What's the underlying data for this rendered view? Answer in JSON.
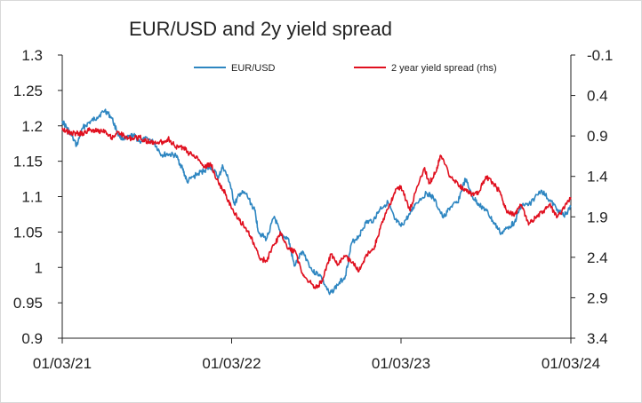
{
  "chart_data": {
    "type": "line",
    "title": "EUR/USD and 2y yield spread",
    "xlabel": "",
    "ylabel": "",
    "x_ticks": [
      "01/03/21",
      "01/03/22",
      "01/03/23",
      "01/03/24"
    ],
    "y_left": {
      "range": [
        0.9,
        1.3
      ],
      "ticks": [
        "1.3",
        "1.25",
        "1.2",
        "1.15",
        "1.1",
        "1.05",
        "1",
        "0.95",
        "0.9"
      ]
    },
    "y_right": {
      "range": [
        -0.1,
        3.4
      ],
      "inverted": true,
      "ticks": [
        "-0.1",
        "0.4",
        "0.9",
        "1.4",
        "1.9",
        "2.4",
        "2.9",
        "3.4"
      ]
    },
    "legend_position": "top",
    "series": [
      {
        "name": "EUR/USD",
        "axis": "left",
        "color": "#2e86c1",
        "points": [
          [
            "2021-03-01",
            1.207
          ],
          [
            "2021-03-15",
            1.193
          ],
          [
            "2021-04-01",
            1.172
          ],
          [
            "2021-04-15",
            1.198
          ],
          [
            "2021-05-01",
            1.206
          ],
          [
            "2021-05-15",
            1.212
          ],
          [
            "2021-06-01",
            1.222
          ],
          [
            "2021-06-15",
            1.212
          ],
          [
            "2021-07-01",
            1.186
          ],
          [
            "2021-07-15",
            1.181
          ],
          [
            "2021-08-01",
            1.187
          ],
          [
            "2021-08-15",
            1.178
          ],
          [
            "2021-09-01",
            1.182
          ],
          [
            "2021-09-15",
            1.176
          ],
          [
            "2021-10-01",
            1.159
          ],
          [
            "2021-10-15",
            1.16
          ],
          [
            "2021-11-01",
            1.158
          ],
          [
            "2021-11-15",
            1.14
          ],
          [
            "2021-11-25",
            1.121
          ],
          [
            "2021-12-15",
            1.131
          ],
          [
            "2022-01-01",
            1.137
          ],
          [
            "2022-01-15",
            1.142
          ],
          [
            "2022-02-01",
            1.127
          ],
          [
            "2022-02-10",
            1.143
          ],
          [
            "2022-02-25",
            1.12
          ],
          [
            "2022-03-07",
            1.089
          ],
          [
            "2022-03-20",
            1.105
          ],
          [
            "2022-04-01",
            1.104
          ],
          [
            "2022-04-20",
            1.08
          ],
          [
            "2022-04-28",
            1.05
          ],
          [
            "2022-05-15",
            1.04
          ],
          [
            "2022-06-01",
            1.072
          ],
          [
            "2022-06-15",
            1.045
          ],
          [
            "2022-07-01",
            1.041
          ],
          [
            "2022-07-14",
            1.002
          ],
          [
            "2022-08-01",
            1.023
          ],
          [
            "2022-08-23",
            0.994
          ],
          [
            "2022-09-07",
            0.99
          ],
          [
            "2022-09-28",
            0.962
          ],
          [
            "2022-10-15",
            0.975
          ],
          [
            "2022-11-01",
            0.988
          ],
          [
            "2022-11-15",
            1.035
          ],
          [
            "2022-12-01",
            1.045
          ],
          [
            "2022-12-15",
            1.063
          ],
          [
            "2023-01-01",
            1.067
          ],
          [
            "2023-01-15",
            1.083
          ],
          [
            "2023-02-01",
            1.092
          ],
          [
            "2023-02-15",
            1.068
          ],
          [
            "2023-03-01",
            1.058
          ],
          [
            "2023-03-20",
            1.075
          ],
          [
            "2023-04-01",
            1.09
          ],
          [
            "2023-04-25",
            1.105
          ],
          [
            "2023-05-10",
            1.098
          ],
          [
            "2023-05-31",
            1.07
          ],
          [
            "2023-06-15",
            1.085
          ],
          [
            "2023-07-01",
            1.092
          ],
          [
            "2023-07-18",
            1.125
          ],
          [
            "2023-08-01",
            1.1
          ],
          [
            "2023-08-15",
            1.09
          ],
          [
            "2023-09-01",
            1.08
          ],
          [
            "2023-09-15",
            1.065
          ],
          [
            "2023-10-03",
            1.048
          ],
          [
            "2023-10-20",
            1.058
          ],
          [
            "2023-11-01",
            1.064
          ],
          [
            "2023-11-15",
            1.088
          ],
          [
            "2023-12-01",
            1.088
          ],
          [
            "2023-12-28",
            1.109
          ],
          [
            "2024-01-15",
            1.095
          ],
          [
            "2024-02-01",
            1.082
          ],
          [
            "2024-02-15",
            1.073
          ],
          [
            "2024-03-01",
            1.085
          ]
        ]
      },
      {
        "name": "2 year yield spread (rhs)",
        "axis": "right",
        "color": "#e0101f",
        "points": [
          [
            "2021-03-01",
            0.8
          ],
          [
            "2021-03-15",
            0.86
          ],
          [
            "2021-04-01",
            0.87
          ],
          [
            "2021-04-15",
            0.87
          ],
          [
            "2021-05-01",
            0.82
          ],
          [
            "2021-05-15",
            0.84
          ],
          [
            "2021-06-01",
            0.83
          ],
          [
            "2021-06-15",
            0.92
          ],
          [
            "2021-07-01",
            0.85
          ],
          [
            "2021-07-15",
            0.92
          ],
          [
            "2021-08-01",
            0.93
          ],
          [
            "2021-08-15",
            0.92
          ],
          [
            "2021-09-01",
            0.97
          ],
          [
            "2021-09-15",
            0.98
          ],
          [
            "2021-10-01",
            0.98
          ],
          [
            "2021-10-15",
            0.93
          ],
          [
            "2021-11-01",
            1.04
          ],
          [
            "2021-11-15",
            1.04
          ],
          [
            "2021-12-01",
            1.12
          ],
          [
            "2021-12-15",
            1.15
          ],
          [
            "2022-01-01",
            1.28
          ],
          [
            "2022-01-15",
            1.25
          ],
          [
            "2022-02-01",
            1.49
          ],
          [
            "2022-02-15",
            1.6
          ],
          [
            "2022-03-01",
            1.8
          ],
          [
            "2022-03-15",
            1.92
          ],
          [
            "2022-04-01",
            2.04
          ],
          [
            "2022-04-15",
            2.2
          ],
          [
            "2022-05-01",
            2.42
          ],
          [
            "2022-05-15",
            2.44
          ],
          [
            "2022-06-01",
            2.24
          ],
          [
            "2022-06-15",
            2.1
          ],
          [
            "2022-07-01",
            2.3
          ],
          [
            "2022-07-15",
            2.32
          ],
          [
            "2022-08-01",
            2.6
          ],
          [
            "2022-08-15",
            2.7
          ],
          [
            "2022-09-01",
            2.78
          ],
          [
            "2022-09-15",
            2.65
          ],
          [
            "2022-10-01",
            2.36
          ],
          [
            "2022-10-15",
            2.5
          ],
          [
            "2022-11-01",
            2.38
          ],
          [
            "2022-11-15",
            2.47
          ],
          [
            "2022-12-01",
            2.56
          ],
          [
            "2022-12-15",
            2.38
          ],
          [
            "2023-01-01",
            2.3
          ],
          [
            "2023-01-15",
            2.05
          ],
          [
            "2023-02-01",
            1.8
          ],
          [
            "2023-02-15",
            1.6
          ],
          [
            "2023-03-01",
            1.52
          ],
          [
            "2023-03-20",
            1.82
          ],
          [
            "2023-04-01",
            1.6
          ],
          [
            "2023-04-20",
            1.3
          ],
          [
            "2023-05-01",
            1.48
          ],
          [
            "2023-05-15",
            1.35
          ],
          [
            "2023-05-25",
            1.14
          ],
          [
            "2023-06-15",
            1.4
          ],
          [
            "2023-07-01",
            1.48
          ],
          [
            "2023-07-15",
            1.58
          ],
          [
            "2023-08-01",
            1.62
          ],
          [
            "2023-08-15",
            1.6
          ],
          [
            "2023-09-01",
            1.4
          ],
          [
            "2023-09-15",
            1.48
          ],
          [
            "2023-10-01",
            1.6
          ],
          [
            "2023-10-15",
            1.85
          ],
          [
            "2023-11-01",
            1.86
          ],
          [
            "2023-11-15",
            1.75
          ],
          [
            "2023-12-01",
            2.0
          ],
          [
            "2023-12-15",
            1.9
          ],
          [
            "2024-01-01",
            1.83
          ],
          [
            "2024-01-15",
            1.75
          ],
          [
            "2024-02-01",
            1.9
          ],
          [
            "2024-02-15",
            1.8
          ],
          [
            "2024-03-01",
            1.66
          ]
        ]
      }
    ]
  }
}
